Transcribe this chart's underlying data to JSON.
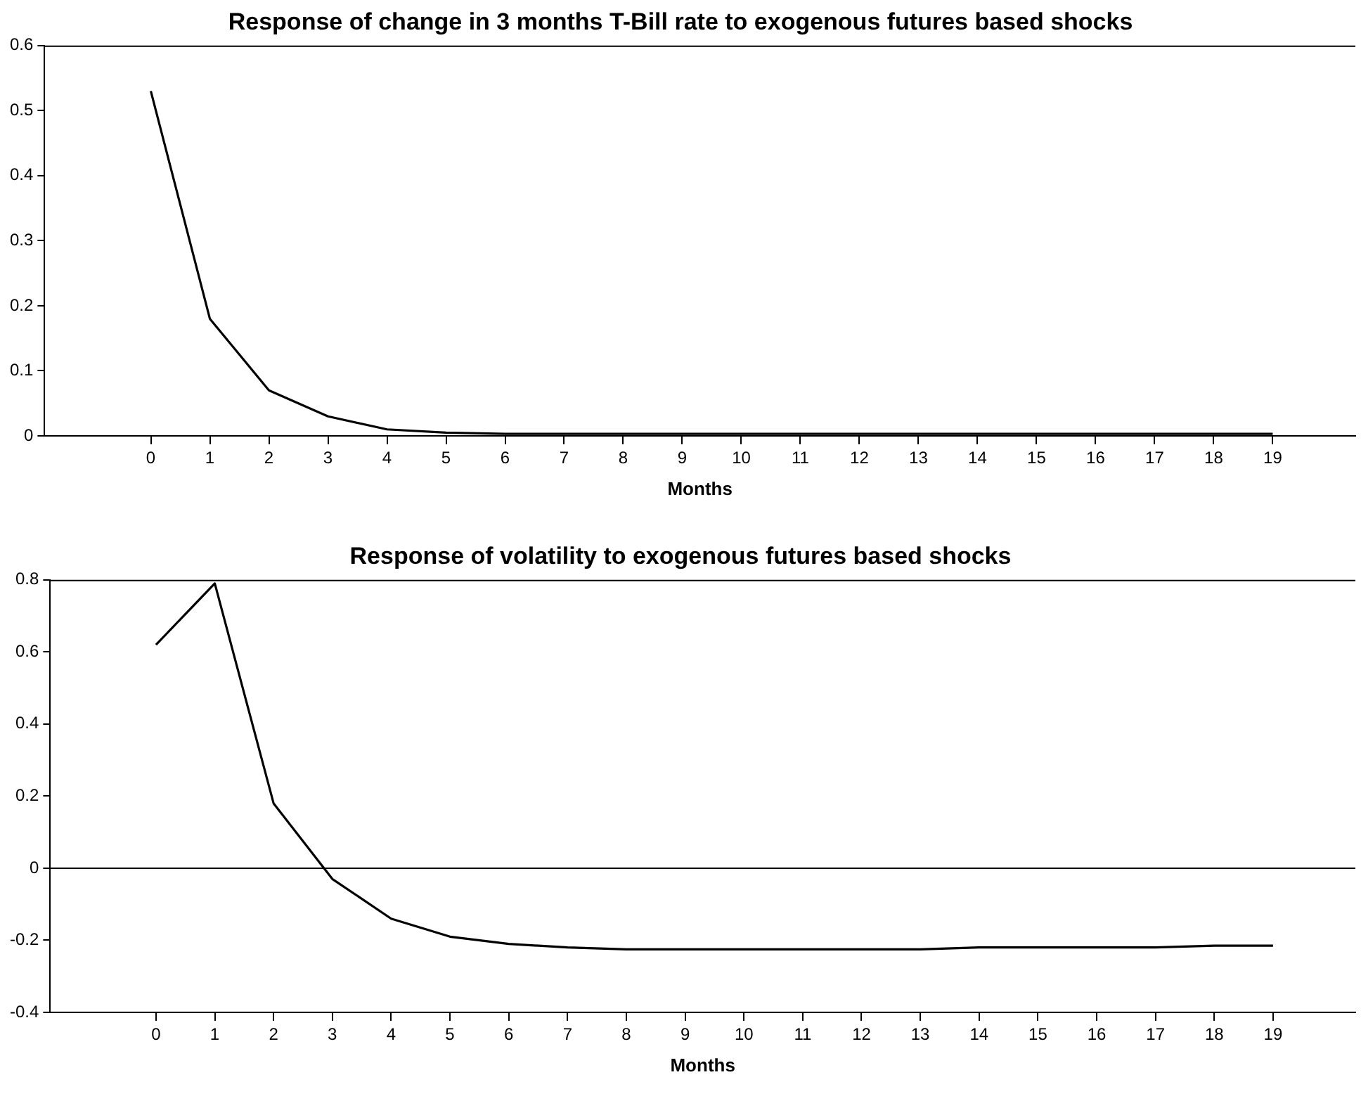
{
  "chart_data": [
    {
      "type": "line",
      "title": "Response of change in 3 months T-Bill rate to exogenous futures based shocks",
      "xlabel": "Months",
      "x": [
        0,
        1,
        2,
        3,
        4,
        5,
        6,
        7,
        8,
        9,
        10,
        11,
        12,
        13,
        14,
        15,
        16,
        17,
        18,
        19
      ],
      "series": [
        {
          "color": "#000000",
          "values": [
            0.53,
            0.18,
            0.07,
            0.03,
            0.01,
            0.005,
            0.003,
            0.003,
            0.003,
            0.003,
            0.003,
            0.003,
            0.003,
            0.003,
            0.003,
            0.003,
            0.003,
            0.003,
            0.003,
            0.003
          ]
        }
      ],
      "xlim": [
        -1.8,
        20.4
      ],
      "xticks": [
        0,
        1,
        2,
        3,
        4,
        5,
        6,
        7,
        8,
        9,
        10,
        11,
        12,
        13,
        14,
        15,
        16,
        17,
        18,
        19
      ],
      "ylim": [
        0,
        0.6
      ],
      "yticks": [
        0,
        0.1,
        0.2,
        0.3,
        0.4,
        0.5,
        0.6
      ],
      "grid": false,
      "legend": false,
      "marker": "none",
      "line_style": "solid"
    },
    {
      "type": "line",
      "title": "Response of volatility to exogenous futures based shocks",
      "xlabel": "Months",
      "x": [
        0,
        1,
        2,
        3,
        4,
        5,
        6,
        7,
        8,
        9,
        10,
        11,
        12,
        13,
        14,
        15,
        16,
        17,
        18,
        19
      ],
      "series": [
        {
          "color": "#000000",
          "values": [
            0.62,
            0.79,
            0.18,
            -0.03,
            -0.14,
            -0.19,
            -0.21,
            -0.22,
            -0.225,
            -0.225,
            -0.225,
            -0.225,
            -0.225,
            -0.225,
            -0.22,
            -0.22,
            -0.22,
            -0.22,
            -0.215,
            -0.215
          ]
        }
      ],
      "xlim": [
        -1.8,
        20.4
      ],
      "xticks": [
        0,
        1,
        2,
        3,
        4,
        5,
        6,
        7,
        8,
        9,
        10,
        11,
        12,
        13,
        14,
        15,
        16,
        17,
        18,
        19
      ],
      "ylim": [
        -0.4,
        0.8
      ],
      "yticks": [
        -0.4,
        -0.2,
        0,
        0.2,
        0.4,
        0.6,
        0.8
      ],
      "grid": false,
      "legend": false,
      "marker": "none",
      "line_style": "solid",
      "ref_lines": [
        {
          "axis": "y",
          "value": 0,
          "color": "#000000"
        }
      ]
    }
  ]
}
